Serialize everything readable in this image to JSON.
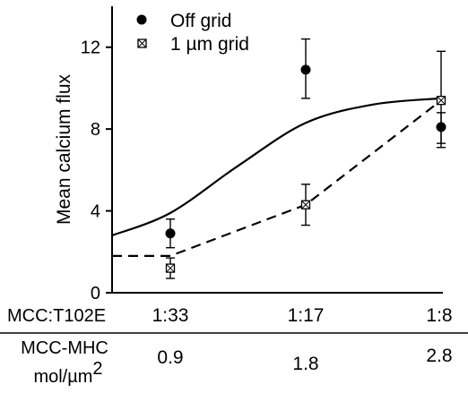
{
  "chart_data": {
    "type": "scatter",
    "ylabel": "Mean calcium flux",
    "ylim": [
      0,
      14
    ],
    "yticks": [
      0,
      4,
      8,
      12
    ],
    "x": [
      1,
      2,
      3
    ],
    "series": [
      {
        "name": "Off grid",
        "marker": "filled-circle",
        "values": [
          2.9,
          10.9,
          8.1
        ],
        "error": [
          [
            2.2,
            3.6
          ],
          [
            9.5,
            12.4
          ],
          [
            7.1,
            8.8
          ]
        ],
        "fit": {
          "style": "solid",
          "points": [
            [
              0.5,
              2.8
            ],
            [
              1,
              3.9
            ],
            [
              1.5,
              6.2
            ],
            [
              2,
              8.3
            ],
            [
              2.5,
              9.2
            ],
            [
              3,
              9.5
            ]
          ]
        }
      },
      {
        "name": "1 µm grid",
        "marker": "crossed-square",
        "values": [
          1.2,
          4.3,
          9.4
        ],
        "error": [
          [
            0.7,
            1.7
          ],
          [
            3.3,
            5.3
          ],
          [
            7.3,
            11.8
          ]
        ],
        "fit": {
          "style": "dashed",
          "points": [
            [
              0.5,
              1.8
            ],
            [
              1,
              1.8
            ],
            [
              2,
              4.3
            ],
            [
              3,
              9.4
            ]
          ]
        }
      }
    ],
    "legend_position": "top-left",
    "grid": false
  },
  "table": {
    "rows": [
      {
        "label": "MCC:T102E",
        "values": [
          "1:33",
          "1:17",
          "1:8"
        ]
      },
      {
        "label_line1": "MCC-MHC",
        "label_line2": "mol/µm",
        "label_sup": "2",
        "values": [
          "0.9",
          "1.8",
          "2.8"
        ]
      }
    ]
  }
}
